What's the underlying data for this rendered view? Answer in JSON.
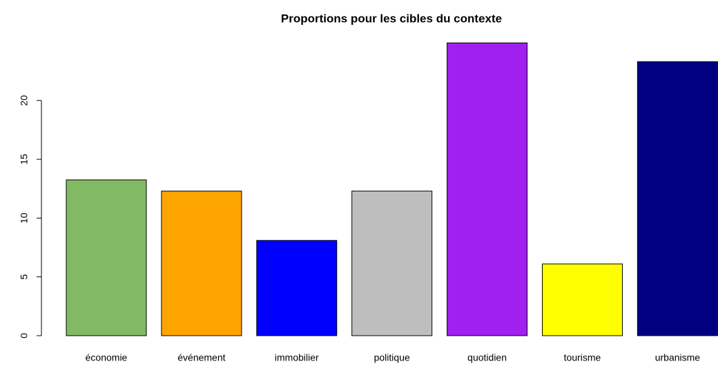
{
  "chart_data": {
    "type": "bar",
    "title": "Proportions pour les cibles du contexte",
    "categories": [
      "économie",
      "événement",
      "immobilier",
      "politique",
      "quotidien",
      "tourisme",
      "urbanisme"
    ],
    "values": [
      13.25,
      12.3,
      8.1,
      12.3,
      24.9,
      6.1,
      23.3
    ],
    "colors": [
      "#82b964",
      "#ffa500",
      "#0000ff",
      "#bebebe",
      "#a020f0",
      "#ffff00",
      "#000080"
    ],
    "ylim": [
      0,
      25
    ],
    "yticks": [
      0,
      5,
      10,
      15,
      20
    ],
    "grid": false
  }
}
